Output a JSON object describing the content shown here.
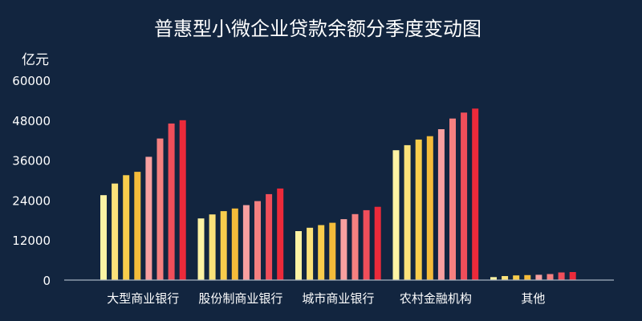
{
  "chart_data": {
    "type": "bar",
    "title": "普惠型小微企业贷款余额分季度变动图",
    "ylabel": "亿元",
    "ylim": [
      0,
      60000
    ],
    "yticks": [
      0,
      12000,
      24000,
      36000,
      48000,
      60000
    ],
    "grid": false,
    "legend": "none",
    "categories": [
      "大型商业银行",
      "股份制商业银行",
      "城市商业银行",
      "农村金融机构",
      "其他"
    ],
    "bar_colors": [
      "#fdf3a4",
      "#fbe27a",
      "#f8cd4c",
      "#f5bc3a",
      "#f8a0a0",
      "#f58080",
      "#f04e5a",
      "#ec2a3a"
    ],
    "values": [
      [
        25500,
        29000,
        31500,
        32500,
        37000,
        42500,
        47000,
        48000
      ],
      [
        18500,
        19700,
        20700,
        21500,
        22500,
        23700,
        25800,
        27500
      ],
      [
        14700,
        15700,
        16500,
        17200,
        18300,
        19800,
        21000,
        22000
      ],
      [
        39000,
        40500,
        42200,
        43200,
        45300,
        48500,
        50300,
        51500
      ],
      [
        900,
        1200,
        1400,
        1500,
        1600,
        1800,
        2300,
        2400
      ]
    ]
  }
}
